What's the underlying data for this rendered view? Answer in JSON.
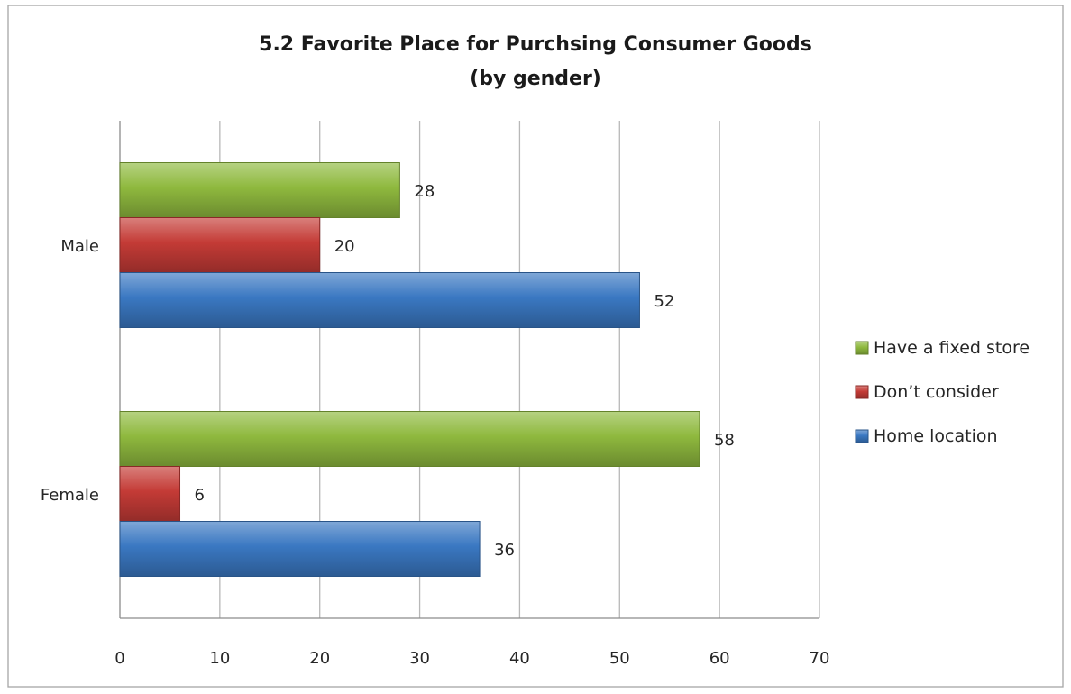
{
  "chart_data": {
    "type": "bar",
    "orientation": "horizontal",
    "title": "5.2 Favorite Place for Purchsing Consumer Goods",
    "subtitle": "(by gender)",
    "categories": [
      "Male",
      "Female"
    ],
    "series": [
      {
        "name": "Have a fixed store",
        "values": [
          28,
          58
        ],
        "color": "#8fb93e"
      },
      {
        "name": "Don't consider",
        "values": [
          20,
          6
        ],
        "color": "#c43b36"
      },
      {
        "name": "Home location",
        "values": [
          52,
          36
        ],
        "color": "#3a78c2"
      }
    ],
    "legend_order": [
      "Have a fixed store",
      "Don't consider",
      "Home location"
    ],
    "legend_labels": [
      "Have a fixed store",
      "Don’t consider",
      "Home location"
    ],
    "x_ticks": [
      "0",
      "10",
      "20",
      "30",
      "40",
      "50",
      "60",
      "70"
    ],
    "xlim": [
      0,
      70
    ],
    "grid": true,
    "legend_position": "right",
    "data_labels": true
  }
}
